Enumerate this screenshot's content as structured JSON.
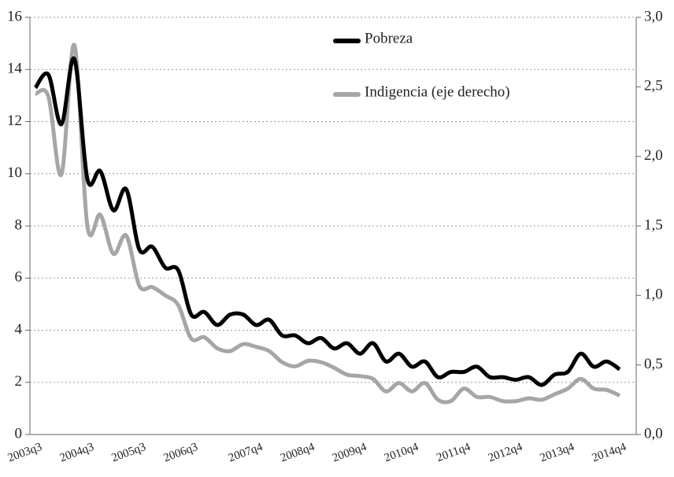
{
  "chart_data": {
    "type": "line",
    "categories": [
      "2003q3",
      null,
      null,
      null,
      "2004q3",
      null,
      null,
      null,
      "2005q3",
      null,
      null,
      null,
      "2006q3",
      null,
      null,
      null,
      null,
      "2007q4",
      null,
      null,
      null,
      "2008q4",
      null,
      null,
      null,
      "2009q4",
      null,
      null,
      null,
      "2010q4",
      null,
      null,
      null,
      "2011q4",
      null,
      null,
      null,
      "2012q4",
      null,
      null,
      null,
      "2013q4",
      null,
      null,
      null,
      "2014q4"
    ],
    "series": [
      {
        "name": "Pobreza",
        "color": "#000000",
        "values": [
          13.3,
          13.8,
          11.9,
          14.4,
          9.8,
          10.1,
          8.6,
          9.4,
          7.1,
          7.2,
          6.4,
          6.3,
          4.6,
          4.7,
          4.2,
          4.6,
          4.6,
          4.2,
          4.4,
          3.8,
          3.8,
          3.5,
          3.7,
          3.3,
          3.5,
          3.1,
          3.5,
          2.8,
          3.1,
          2.6,
          2.8,
          2.2,
          2.4,
          2.4,
          2.6,
          2.2,
          2.2,
          2.1,
          2.2,
          1.9,
          2.3,
          2.4,
          3.1,
          2.6,
          2.8,
          2.5
        ]
      },
      {
        "name": "Indigencia (eje derecho)",
        "color": "#a6a6a6",
        "axis": "y2",
        "values": [
          2.45,
          2.43,
          1.87,
          2.8,
          1.5,
          1.58,
          1.3,
          1.43,
          1.07,
          1.06,
          1.0,
          0.93,
          0.69,
          0.7,
          0.62,
          0.6,
          0.65,
          0.63,
          0.6,
          0.52,
          0.49,
          0.53,
          0.52,
          0.48,
          0.43,
          0.42,
          0.4,
          0.31,
          0.37,
          0.31,
          0.37,
          0.25,
          0.24,
          0.33,
          0.27,
          0.27,
          0.24,
          0.24,
          0.26,
          0.25,
          0.29,
          0.33,
          0.4,
          0.33,
          0.32,
          0.28
        ]
      }
    ],
    "ylim": [
      0,
      16
    ],
    "yticks": [
      0,
      2,
      4,
      6,
      8,
      10,
      12,
      14,
      16
    ],
    "y2lim": [
      0,
      3
    ],
    "y2ticks": [
      {
        "value": 0,
        "label": "0,0"
      },
      {
        "value": 0.5,
        "label": "0,5"
      },
      {
        "value": 1,
        "label": "1,0"
      },
      {
        "value": 1.5,
        "label": "1,5"
      },
      {
        "value": 2,
        "label": "2,0"
      },
      {
        "value": 2.5,
        "label": "2,5"
      },
      {
        "value": 3,
        "label": "3,0"
      }
    ],
    "grid": true
  }
}
